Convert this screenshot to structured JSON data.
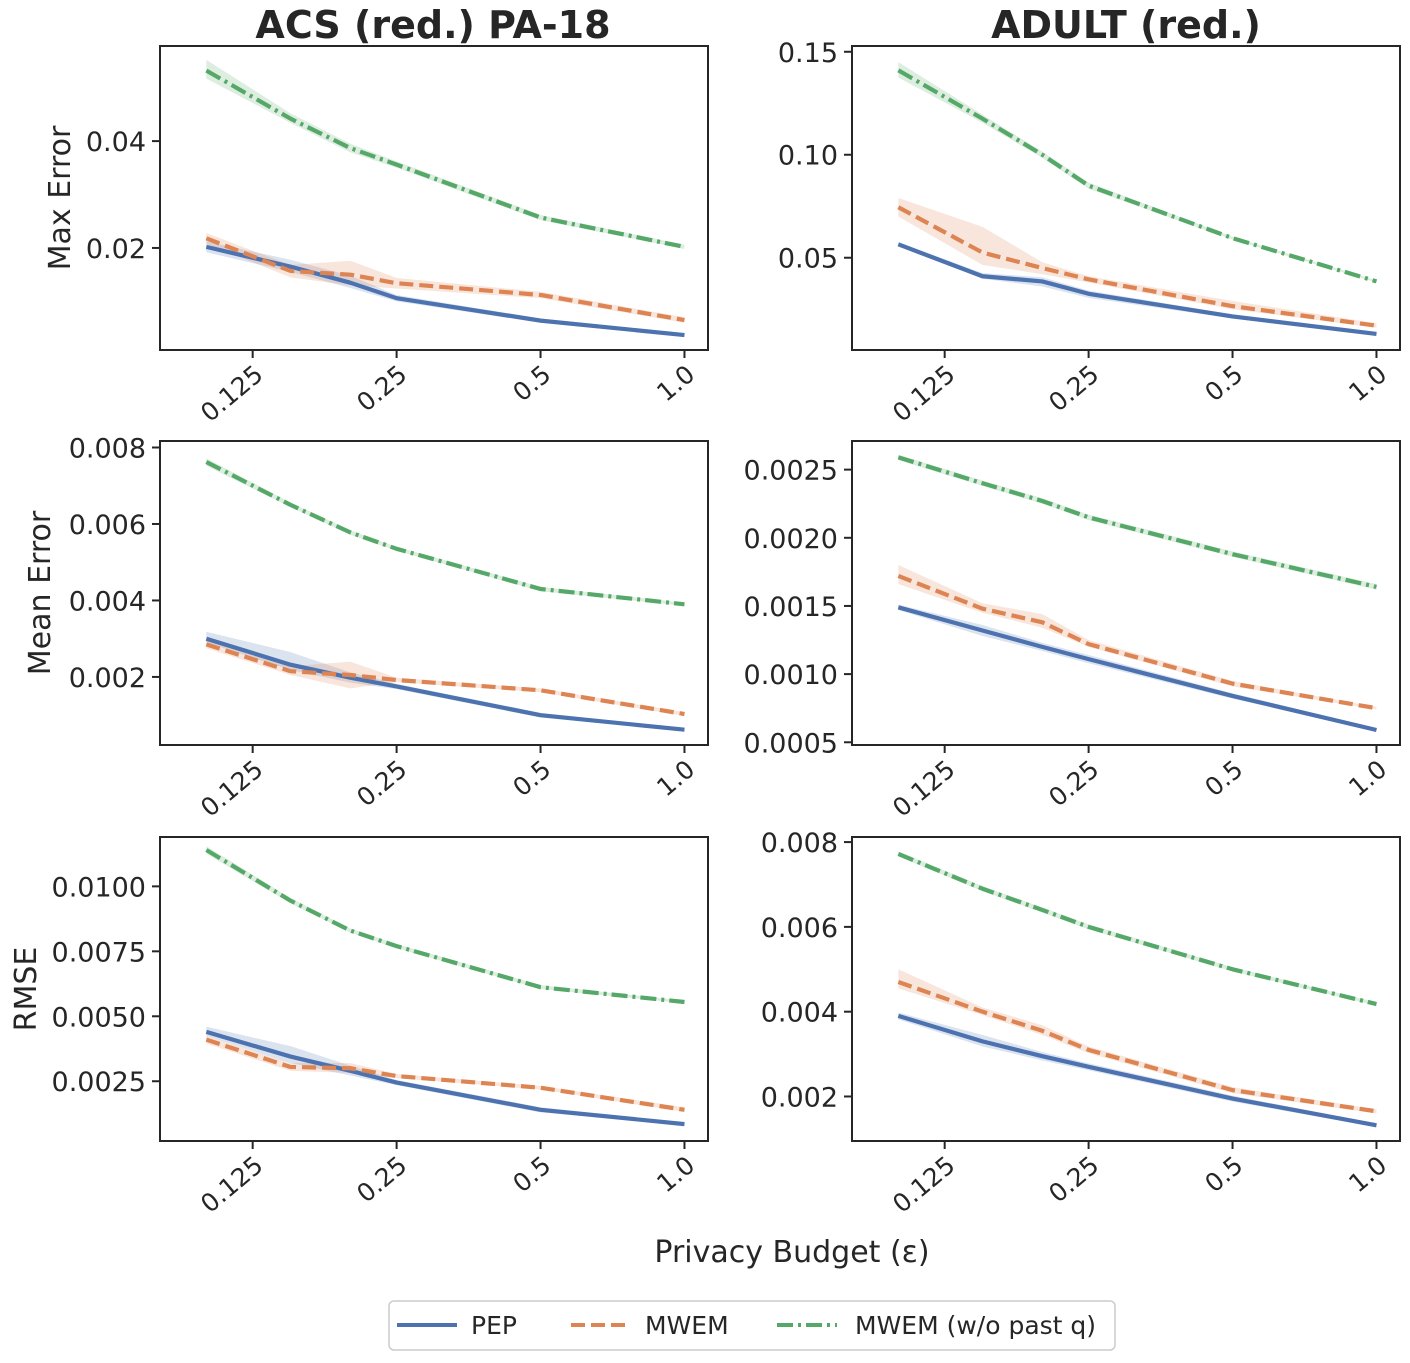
{
  "figure": {
    "xlabel": "Privacy Budget (ε)",
    "column_titles": [
      "ACS (red.) PA-18",
      "ADULT (red.)"
    ],
    "row_labels": [
      "Max Error",
      "Mean Error",
      "RMSE"
    ]
  },
  "legend": {
    "items": [
      {
        "label": "PEP",
        "color": "#4c72b0",
        "style": "solid"
      },
      {
        "label": "MWEM",
        "color": "#dd8452",
        "style": "dashed"
      },
      {
        "label": "MWEM (w/o past q)",
        "color": "#55a868",
        "style": "dashdot"
      }
    ]
  },
  "chart_data": [
    {
      "type": "line",
      "column": 0,
      "row": 0,
      "title": "ACS (red.) PA-18",
      "ylabel": "Max Error",
      "xlabel": "Privacy Budget (ε)",
      "x": [
        0.1,
        0.15,
        0.2,
        0.25,
        0.5,
        1.0
      ],
      "xscale": "log2",
      "xlim": [
        0.08,
        1.12
      ],
      "xticks": [
        0.125,
        0.25,
        0.5,
        1.0
      ],
      "xticklabels": [
        "0.125",
        "0.25",
        "0.5",
        "1.0"
      ],
      "ylim": [
        0.0009,
        0.0578
      ],
      "yticks": [
        0.02,
        0.04
      ],
      "yticklabels": [
        "0.02",
        "0.04"
      ],
      "series": [
        {
          "name": "PEP",
          "values": [
            0.0202,
            0.0165,
            0.0135,
            0.0106,
            0.0064,
            0.0037
          ],
          "lower": [
            0.0192,
            0.0155,
            0.0125,
            0.01,
            0.006,
            0.0034
          ],
          "upper": [
            0.0212,
            0.0178,
            0.0148,
            0.0112,
            0.0068,
            0.004
          ]
        },
        {
          "name": "MWEM",
          "values": [
            0.0218,
            0.0157,
            0.015,
            0.0134,
            0.0112,
            0.0065
          ],
          "lower": [
            0.0208,
            0.0145,
            0.013,
            0.0124,
            0.0106,
            0.006
          ],
          "upper": [
            0.0228,
            0.0168,
            0.0176,
            0.0144,
            0.0118,
            0.007
          ]
        },
        {
          "name": "MWEM (w/o past q)",
          "values": [
            0.0532,
            0.0442,
            0.0387,
            0.0356,
            0.0257,
            0.0202
          ],
          "lower": [
            0.0517,
            0.0434,
            0.0379,
            0.035,
            0.0252,
            0.0198
          ],
          "upper": [
            0.0552,
            0.0452,
            0.0395,
            0.0362,
            0.0262,
            0.0206
          ]
        }
      ]
    },
    {
      "type": "line",
      "column": 1,
      "row": 0,
      "title": "ADULT (red.)",
      "ylabel": "",
      "xlabel": "Privacy Budget (ε)",
      "x": [
        0.1,
        0.15,
        0.2,
        0.25,
        0.5,
        1.0
      ],
      "xscale": "log2",
      "xlim": [
        0.08,
        1.12
      ],
      "xticks": [
        0.125,
        0.25,
        0.5,
        1.0
      ],
      "xticklabels": [
        "0.125",
        "0.25",
        "0.5",
        "1.0"
      ],
      "ylim": [
        0.0052,
        0.1528
      ],
      "yticks": [
        0.05,
        0.1,
        0.15
      ],
      "yticklabels": [
        "0.05",
        "0.10",
        "0.15"
      ],
      "series": [
        {
          "name": "PEP",
          "values": [
            0.0565,
            0.041,
            0.0385,
            0.0325,
            0.0215,
            0.013
          ],
          "lower": [
            0.0555,
            0.0398,
            0.036,
            0.0305,
            0.0205,
            0.0122
          ],
          "upper": [
            0.0575,
            0.0425,
            0.0405,
            0.034,
            0.0225,
            0.0138
          ]
        },
        {
          "name": "MWEM",
          "values": [
            0.0745,
            0.0525,
            0.045,
            0.0395,
            0.0265,
            0.017
          ],
          "lower": [
            0.07,
            0.0465,
            0.042,
            0.038,
            0.025,
            0.016
          ],
          "upper": [
            0.079,
            0.065,
            0.0478,
            0.041,
            0.029,
            0.0182
          ]
        },
        {
          "name": "MWEM (w/o past q)",
          "values": [
            0.141,
            0.1175,
            0.1,
            0.085,
            0.0595,
            0.0385
          ],
          "lower": [
            0.1375,
            0.1155,
            0.0985,
            0.0835,
            0.0588,
            0.038
          ],
          "upper": [
            0.145,
            0.1195,
            0.1015,
            0.0865,
            0.0602,
            0.039
          ]
        }
      ]
    },
    {
      "type": "line",
      "column": 0,
      "row": 1,
      "title": "",
      "ylabel": "Mean Error",
      "xlabel": "Privacy Budget (ε)",
      "x": [
        0.1,
        0.15,
        0.2,
        0.25,
        0.5,
        1.0
      ],
      "xscale": "log2",
      "xlim": [
        0.08,
        1.12
      ],
      "xticks": [
        0.125,
        0.25,
        0.5,
        1.0
      ],
      "xticklabels": [
        "0.125",
        "0.25",
        "0.5",
        "1.0"
      ],
      "ylim": [
        0.00022,
        0.00817
      ],
      "yticks": [
        0.002,
        0.004,
        0.006,
        0.008
      ],
      "yticklabels": [
        "0.002",
        "0.004",
        "0.006",
        "0.008"
      ],
      "series": [
        {
          "name": "PEP",
          "values": [
            0.003,
            0.00232,
            0.00198,
            0.00175,
            0.001,
            0.00062
          ],
          "lower": [
            0.0029,
            0.00218,
            0.00185,
            0.00168,
            0.00094,
            0.00058
          ],
          "upper": [
            0.00318,
            0.00265,
            0.00212,
            0.00182,
            0.00106,
            0.00066
          ]
        },
        {
          "name": "MWEM",
          "values": [
            0.00285,
            0.00215,
            0.00205,
            0.00192,
            0.00165,
            0.00103
          ],
          "lower": [
            0.00275,
            0.00205,
            0.0017,
            0.00186,
            0.0016,
            0.00098
          ],
          "upper": [
            0.00295,
            0.00228,
            0.0024,
            0.00198,
            0.0017,
            0.00108
          ]
        },
        {
          "name": "MWEM (w/o past q)",
          "values": [
            0.00762,
            0.0065,
            0.00578,
            0.00535,
            0.0043,
            0.0039
          ],
          "lower": [
            0.00752,
            0.00644,
            0.00572,
            0.0053,
            0.00424,
            0.00386
          ],
          "upper": [
            0.00772,
            0.00656,
            0.00584,
            0.0054,
            0.00436,
            0.00394
          ]
        }
      ]
    },
    {
      "type": "line",
      "column": 1,
      "row": 1,
      "title": "",
      "ylabel": "",
      "xlabel": "Privacy Budget (ε)",
      "x": [
        0.1,
        0.15,
        0.2,
        0.25,
        0.5,
        1.0
      ],
      "xscale": "log2",
      "xlim": [
        0.08,
        1.12
      ],
      "xticks": [
        0.125,
        0.25,
        0.5,
        1.0
      ],
      "xticklabels": [
        "0.125",
        "0.25",
        "0.5",
        "1.0"
      ],
      "ylim": [
        0.00048,
        0.00271
      ],
      "yticks": [
        0.0005,
        0.001,
        0.0015,
        0.002,
        0.0025
      ],
      "yticklabels": [
        "0.0005",
        "0.0010",
        "0.0015",
        "0.0020",
        "0.0025"
      ],
      "series": [
        {
          "name": "PEP",
          "values": [
            0.00149,
            0.00132,
            0.0012,
            0.00111,
            0.00084,
            0.00059
          ],
          "lower": [
            0.00147,
            0.00128,
            0.00117,
            0.00108,
            0.00082,
            0.00058
          ],
          "upper": [
            0.00151,
            0.00136,
            0.00123,
            0.00114,
            0.00086,
            0.0006
          ]
        },
        {
          "name": "MWEM",
          "values": [
            0.00172,
            0.00148,
            0.00138,
            0.00122,
            0.00093,
            0.00075
          ],
          "lower": [
            0.00166,
            0.00145,
            0.00134,
            0.0012,
            0.00091,
            0.00074
          ],
          "upper": [
            0.0018,
            0.00152,
            0.00144,
            0.00125,
            0.00095,
            0.00076
          ]
        },
        {
          "name": "MWEM (w/o past q)",
          "values": [
            0.00259,
            0.0024,
            0.00227,
            0.00215,
            0.00188,
            0.00164
          ],
          "lower": [
            0.00257,
            0.00238,
            0.00225,
            0.00213,
            0.00186,
            0.00162
          ],
          "upper": [
            0.00261,
            0.00242,
            0.00229,
            0.00217,
            0.0019,
            0.00166
          ]
        }
      ]
    },
    {
      "type": "line",
      "column": 0,
      "row": 2,
      "title": "",
      "ylabel": "RMSE",
      "xlabel": "Privacy Budget (ε)",
      "x": [
        0.1,
        0.15,
        0.2,
        0.25,
        0.5,
        1.0
      ],
      "xscale": "log2",
      "xlim": [
        0.08,
        1.12
      ],
      "xticks": [
        0.125,
        0.25,
        0.5,
        1.0
      ],
      "xticklabels": [
        "0.125",
        "0.25",
        "0.5",
        "1.0"
      ],
      "ylim": [
        0.0002,
        0.0119
      ],
      "yticks": [
        0.0025,
        0.005,
        0.0075,
        0.01
      ],
      "yticklabels": [
        "0.0025",
        "0.0050",
        "0.0075",
        "0.0100"
      ],
      "series": [
        {
          "name": "PEP",
          "values": [
            0.0044,
            0.00345,
            0.0029,
            0.00245,
            0.0014,
            0.00085
          ],
          "lower": [
            0.00425,
            0.0032,
            0.00272,
            0.00235,
            0.0013,
            0.0008
          ],
          "upper": [
            0.0046,
            0.00385,
            0.0031,
            0.00255,
            0.0015,
            0.0009
          ]
        },
        {
          "name": "MWEM",
          "values": [
            0.0041,
            0.00305,
            0.003,
            0.0027,
            0.00225,
            0.0014
          ],
          "lower": [
            0.00395,
            0.0029,
            0.00282,
            0.00262,
            0.00218,
            0.00132
          ],
          "upper": [
            0.00425,
            0.0032,
            0.0032,
            0.00278,
            0.00232,
            0.0015
          ]
        },
        {
          "name": "MWEM (w/o past q)",
          "values": [
            0.0114,
            0.00945,
            0.0083,
            0.0077,
            0.00612,
            0.00555
          ],
          "lower": [
            0.01125,
            0.00935,
            0.00822,
            0.00762,
            0.00605,
            0.0055
          ],
          "upper": [
            0.01155,
            0.00955,
            0.00838,
            0.00778,
            0.0062,
            0.0056
          ]
        }
      ]
    },
    {
      "type": "line",
      "column": 1,
      "row": 2,
      "title": "",
      "ylabel": "",
      "xlabel": "Privacy Budget (ε)",
      "x": [
        0.1,
        0.15,
        0.2,
        0.25,
        0.5,
        1.0
      ],
      "xscale": "log2",
      "xlim": [
        0.08,
        1.12
      ],
      "xticks": [
        0.125,
        0.25,
        0.5,
        1.0
      ],
      "xticklabels": [
        "0.125",
        "0.25",
        "0.5",
        "1.0"
      ],
      "ylim": [
        0.00095,
        0.00812
      ],
      "yticks": [
        0.002,
        0.004,
        0.006,
        0.008
      ],
      "yticklabels": [
        "0.002",
        "0.004",
        "0.006",
        "0.008"
      ],
      "series": [
        {
          "name": "PEP",
          "values": [
            0.0039,
            0.0033,
            0.00295,
            0.0027,
            0.00195,
            0.00132
          ],
          "lower": [
            0.00382,
            0.00318,
            0.00285,
            0.00262,
            0.00188,
            0.00128
          ],
          "upper": [
            0.00398,
            0.00345,
            0.00305,
            0.00278,
            0.00202,
            0.00136
          ]
        },
        {
          "name": "MWEM",
          "values": [
            0.0047,
            0.004,
            0.00355,
            0.0031,
            0.00215,
            0.00165
          ],
          "lower": [
            0.00455,
            0.00392,
            0.00345,
            0.00302,
            0.00208,
            0.0016
          ],
          "upper": [
            0.005,
            0.0041,
            0.00368,
            0.00318,
            0.00222,
            0.0017
          ]
        },
        {
          "name": "MWEM (w/o past q)",
          "values": [
            0.00772,
            0.0069,
            0.0064,
            0.006,
            0.005,
            0.00418
          ],
          "lower": [
            0.00766,
            0.00684,
            0.00634,
            0.00594,
            0.00495,
            0.00414
          ],
          "upper": [
            0.00778,
            0.00696,
            0.00646,
            0.00606,
            0.00505,
            0.00422
          ]
        }
      ]
    }
  ]
}
